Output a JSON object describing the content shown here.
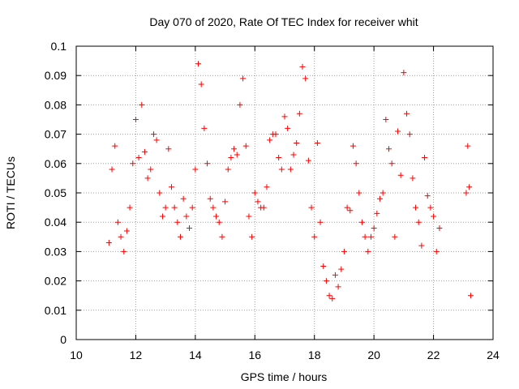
{
  "chart_data": {
    "type": "scatter",
    "title": "Day 070 of 2020, Rate Of TEC Index for receiver whit",
    "xlabel": "GPS time / hours",
    "ylabel": "ROTI / TECUs",
    "xlim": [
      10,
      24
    ],
    "ylim": [
      0,
      0.1
    ],
    "x_ticks": [
      "10",
      "12",
      "14",
      "16",
      "18",
      "20",
      "22",
      "24"
    ],
    "y_ticks": [
      "0",
      "0.01",
      "0.02",
      "0.03",
      "0.04",
      "0.05",
      "0.06",
      "0.07",
      "0.08",
      "0.09",
      "0.1"
    ],
    "grid": true,
    "marker": "plus",
    "color": "#ff0000",
    "series": [
      {
        "x": [
          11.1,
          11.2,
          11.3,
          11.4,
          11.5,
          11.6,
          11.7,
          11.8,
          11.9,
          12.0,
          12.1,
          12.2,
          12.3,
          12.4,
          12.5,
          12.6,
          12.7,
          12.8,
          12.9,
          13.0,
          13.1,
          13.2,
          13.3,
          13.4,
          13.5,
          13.6,
          13.7,
          13.8,
          13.9,
          14.0,
          14.1,
          14.2,
          14.3,
          14.4,
          14.5,
          14.6,
          14.7,
          14.8,
          14.9,
          15.0,
          15.1,
          15.2,
          15.3,
          15.4,
          15.5,
          15.6,
          15.7,
          15.8,
          15.9,
          16.0,
          16.1,
          16.2,
          16.3,
          16.4,
          16.5,
          16.6,
          16.7,
          16.8,
          16.9,
          17.0,
          17.1,
          17.2,
          17.3,
          17.4,
          17.5,
          17.6,
          17.7,
          17.8,
          17.9,
          18.0,
          18.1,
          18.2,
          18.3,
          18.4,
          18.5,
          18.6,
          18.7,
          18.8,
          18.9,
          19.0,
          19.1,
          19.2,
          19.3,
          19.4,
          19.5,
          19.6,
          19.7,
          19.8,
          19.9,
          20.0,
          20.1,
          20.2,
          20.3,
          20.4,
          20.5,
          20.6,
          20.7,
          20.8,
          20.9,
          21.0,
          21.1,
          21.2,
          21.3,
          21.4,
          21.5,
          21.6,
          21.7,
          21.8,
          21.9,
          22.0,
          22.1,
          22.2,
          23.1,
          23.15,
          23.2,
          23.25
        ],
        "y": [
          0.033,
          0.058,
          0.066,
          0.04,
          0.035,
          0.03,
          0.037,
          0.045,
          0.06,
          0.075,
          0.062,
          0.08,
          0.064,
          0.055,
          0.058,
          0.07,
          0.068,
          0.05,
          0.042,
          0.045,
          0.065,
          0.052,
          0.045,
          0.04,
          0.035,
          0.048,
          0.042,
          0.038,
          0.045,
          0.058,
          0.094,
          0.087,
          0.072,
          0.06,
          0.048,
          0.045,
          0.042,
          0.04,
          0.035,
          0.047,
          0.058,
          0.062,
          0.065,
          0.063,
          0.08,
          0.089,
          0.066,
          0.042,
          0.035,
          0.05,
          0.047,
          0.045,
          0.045,
          0.052,
          0.068,
          0.07,
          0.07,
          0.062,
          0.058,
          0.076,
          0.072,
          0.058,
          0.063,
          0.067,
          0.077,
          0.093,
          0.089,
          0.061,
          0.045,
          0.035,
          0.067,
          0.04,
          0.025,
          0.02,
          0.015,
          0.014,
          0.022,
          0.018,
          0.024,
          0.03,
          0.045,
          0.044,
          0.066,
          0.06,
          0.05,
          0.04,
          0.035,
          0.03,
          0.035,
          0.038,
          0.043,
          0.048,
          0.05,
          0.075,
          0.065,
          0.06,
          0.035,
          0.071,
          0.056,
          0.091,
          0.077,
          0.07,
          0.055,
          0.045,
          0.04,
          0.032,
          0.062,
          0.049,
          0.045,
          0.042,
          0.03,
          0.038,
          0.05,
          0.066,
          0.052,
          0.015
        ]
      }
    ]
  }
}
